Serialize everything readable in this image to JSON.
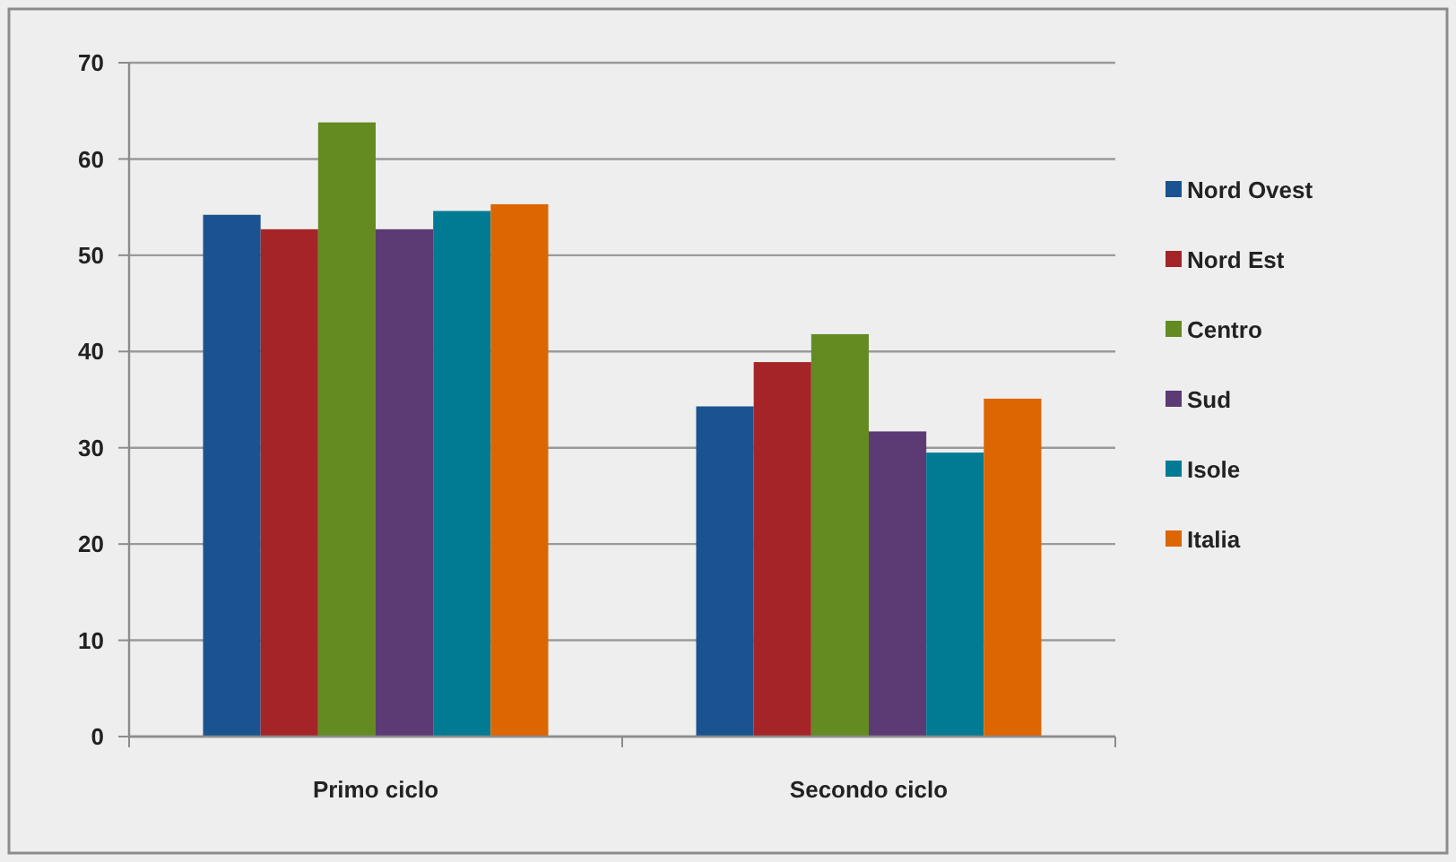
{
  "chart_data": {
    "type": "bar",
    "categories": [
      "Primo ciclo",
      "Secondo ciclo"
    ],
    "series": [
      {
        "name": "Nord Ovest",
        "color": "#1a5390",
        "values": [
          54.2,
          34.3
        ]
      },
      {
        "name": "Nord Est",
        "color": "#a52427",
        "values": [
          52.7,
          38.9
        ]
      },
      {
        "name": "Centro",
        "color": "#638b22",
        "values": [
          63.8,
          41.8
        ]
      },
      {
        "name": "Sud",
        "color": "#5c3a74",
        "values": [
          52.7,
          31.7
        ]
      },
      {
        "name": "Isole",
        "color": "#007b93",
        "values": [
          54.6,
          29.5
        ]
      },
      {
        "name": "Italia",
        "color": "#dc6602",
        "values": [
          55.3,
          35.1
        ]
      }
    ],
    "ylim": [
      0,
      70
    ],
    "yticks": [
      0,
      10,
      20,
      30,
      40,
      50,
      60,
      70
    ],
    "grid": "y",
    "legend": "right"
  }
}
